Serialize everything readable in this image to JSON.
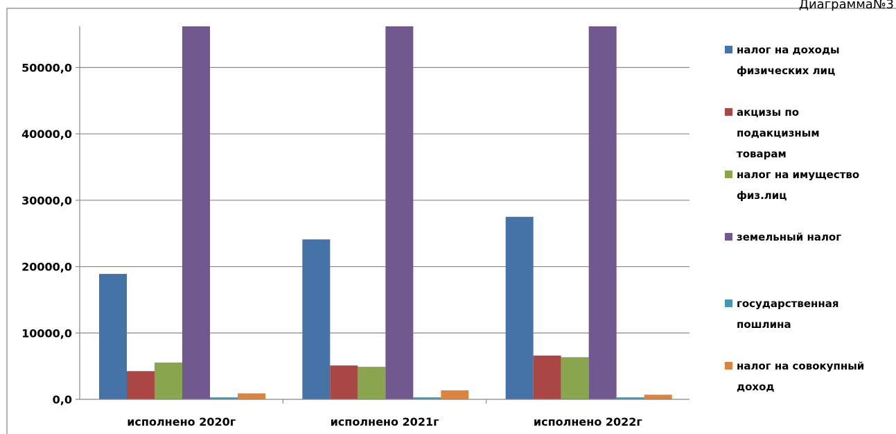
{
  "header": {
    "diagram_label": "Диаграмма№3"
  },
  "chart_data": {
    "type": "bar",
    "categories": [
      "исполнено 2020г",
      "исполнено 2021г",
      "исполнено 2022г"
    ],
    "series": [
      {
        "name": "налог на доходы физических лиц",
        "legend_lines": [
          "налог на доходы",
          "физических лиц"
        ],
        "color": "#4572A7",
        "values": [
          18900,
          24100,
          27500
        ]
      },
      {
        "name": "акцизы по подакцизным товарам",
        "legend_lines": [
          "акцизы по",
          "подакцизным",
          "товарам"
        ],
        "color": "#AA4643",
        "values": [
          4250,
          5100,
          6600
        ]
      },
      {
        "name": "налог на имущество физ.лиц",
        "legend_lines": [
          "налог на имущество",
          "физ.лиц"
        ],
        "color": "#89A54E",
        "values": [
          5550,
          4900,
          6350
        ]
      },
      {
        "name": "земельный налог",
        "legend_lines": [
          "земельный налог"
        ],
        "color": "#71588F",
        "values": [
          56200,
          56200,
          56200
        ]
      },
      {
        "name": "государственная пошлина",
        "legend_lines": [
          "государственная",
          "пошлина"
        ],
        "color": "#4198AF",
        "values": [
          300,
          300,
          300
        ]
      },
      {
        "name": "налог на совокупный доход",
        "legend_lines": [
          "налог на совокупный",
          "доход"
        ],
        "color": "#DB843D",
        "values": [
          900,
          1350,
          700
        ]
      }
    ],
    "y_ticks": [
      "0,0",
      "10000,0",
      "20000,0",
      "30000,0",
      "40000,0",
      "50000,0"
    ],
    "ylim": [
      0,
      56200
    ],
    "grid": true,
    "legend": "right",
    "title": "",
    "xlabel": "",
    "ylabel": ""
  }
}
